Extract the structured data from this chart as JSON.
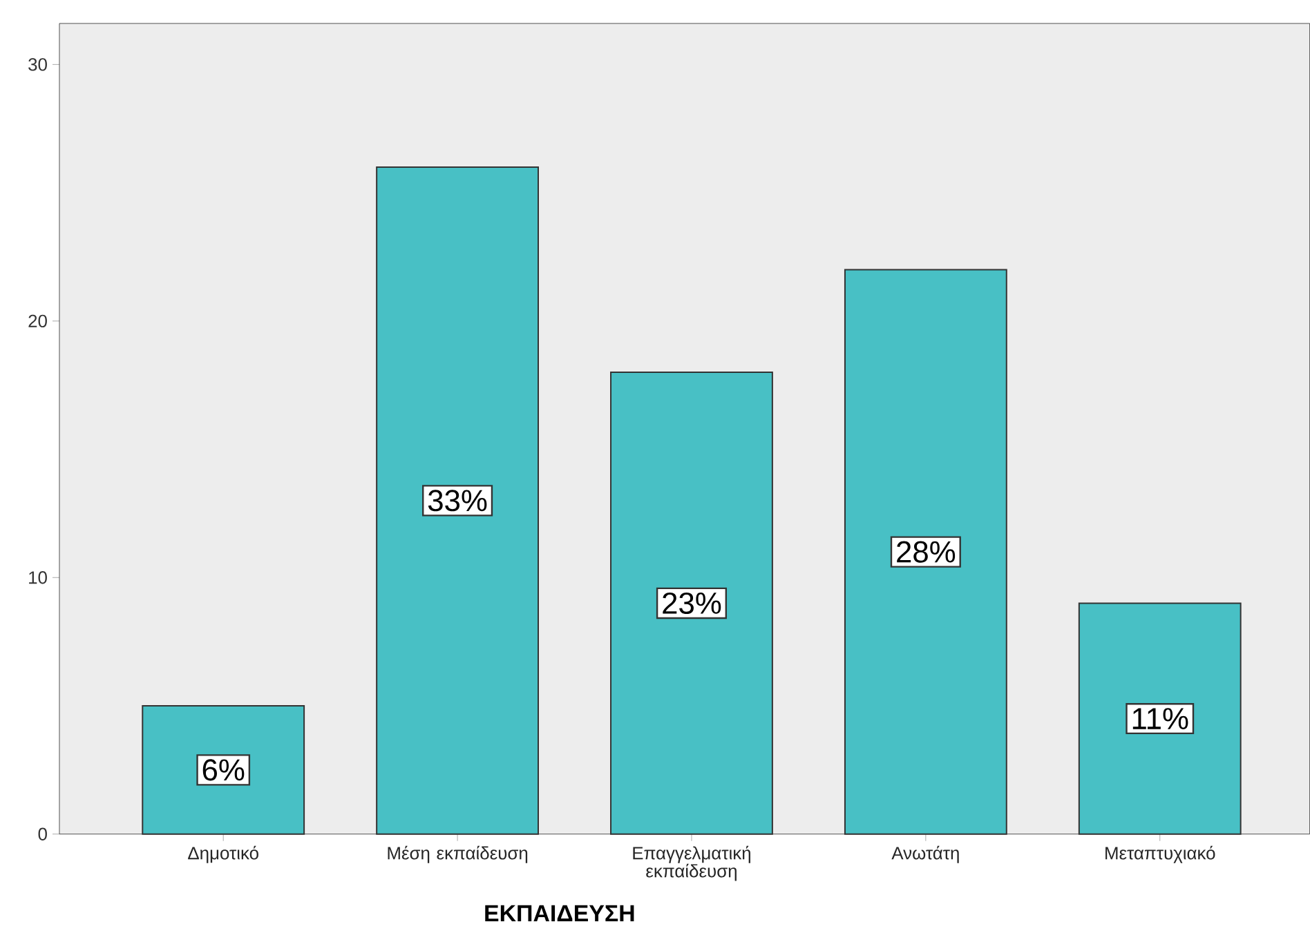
{
  "chart_data": {
    "type": "bar",
    "xlabel": "ΕΚΠΑΙΔΕΥΣΗ",
    "categories": [
      "Δημοτικό",
      "Μέση εκπαίδευση",
      "Επαγγελματική εκπαίδευση",
      "Ανωτάτη",
      "Μεταπτυχιακό"
    ],
    "values": [
      5,
      26,
      18,
      22,
      9
    ],
    "annotations": [
      "6%",
      "33%",
      "23%",
      "28%",
      "11%"
    ],
    "color": "#48c0c5",
    "ylim": [
      0,
      31.6
    ],
    "yticks": [
      0,
      10,
      20,
      30
    ]
  }
}
